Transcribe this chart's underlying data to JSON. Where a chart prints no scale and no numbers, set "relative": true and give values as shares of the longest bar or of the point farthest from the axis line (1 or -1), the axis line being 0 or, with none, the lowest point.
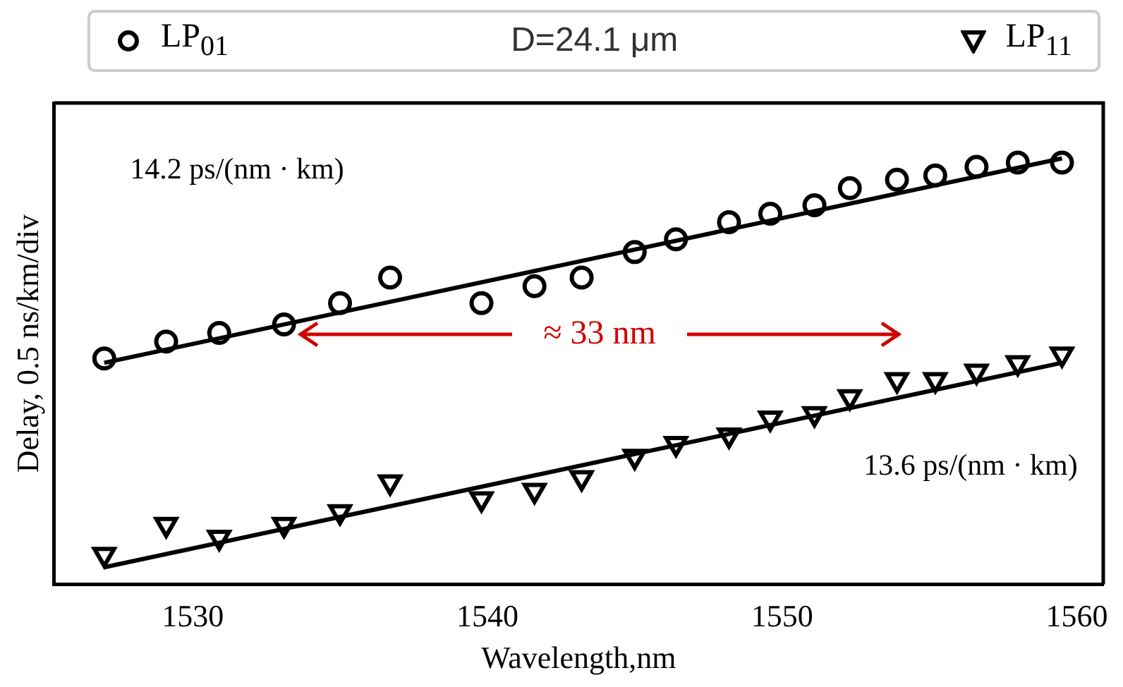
{
  "chart_data": {
    "type": "scatter",
    "xlabel": "Wavelength,nm",
    "ylabel": "Delay, 0.5 ns/km/div",
    "legend_title": "D=24.1 μm",
    "legend": "top",
    "relative": true,
    "xlim": [
      1525.3,
      1560.9
    ],
    "xticks": [
      1530,
      1540,
      1550,
      1560
    ],
    "grid": false,
    "series": [
      {
        "name": "LP$_{01}$",
        "color": "#000000",
        "marker": "circle",
        "x": [
          1527.0,
          1529.1,
          1530.9,
          1533.1,
          1535.0,
          1536.7,
          1539.8,
          1541.6,
          1543.2,
          1545.0,
          1546.4,
          1548.2,
          1549.6,
          1551.1,
          1552.3,
          1553.9,
          1555.2,
          1556.6,
          1558.0,
          1559.5
        ],
        "values": [
          0.53,
          0.57,
          0.59,
          0.61,
          0.66,
          0.72,
          0.66,
          0.7,
          0.72,
          0.78,
          0.81,
          0.85,
          0.87,
          0.89,
          0.93,
          0.95,
          0.96,
          0.98,
          0.99,
          0.99
        ]
      },
      {
        "name": "LP$_{11}$",
        "color": "#000000",
        "marker": "triangle",
        "x": [
          1527.0,
          1529.1,
          1530.9,
          1533.1,
          1535.0,
          1536.7,
          1539.8,
          1541.6,
          1543.2,
          1545.0,
          1546.4,
          1548.2,
          1549.6,
          1551.1,
          1552.3,
          1553.9,
          1555.2,
          1556.6,
          1558.0,
          1559.5
        ],
        "values": [
          0.07,
          0.14,
          0.11,
          0.14,
          0.17,
          0.24,
          0.2,
          0.22,
          0.25,
          0.3,
          0.33,
          0.35,
          0.39,
          0.4,
          0.44,
          0.48,
          0.48,
          0.5,
          0.52,
          0.54
        ]
      },
      {
        "type": "line",
        "color": "#000000",
        "marker": "none",
        "line_style": "solid",
        "x": [
          1527.0,
          1559.5
        ],
        "values": [
          0.52,
          1.0
        ]
      },
      {
        "type": "line",
        "color": "#000000",
        "marker": "none",
        "line_style": "solid",
        "x": [
          1527.0,
          1559.5
        ],
        "values": [
          0.04,
          0.52
        ]
      }
    ],
    "annotations": [
      "14.2 ps/(nm · km)",
      "≈ 33 nm",
      "13.6 ps/(nm · km)"
    ]
  }
}
